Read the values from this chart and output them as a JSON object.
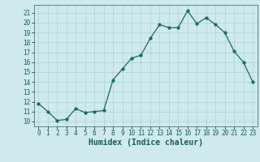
{
  "xlabel": "Humidex (Indice chaleur)",
  "x": [
    0,
    1,
    2,
    3,
    4,
    5,
    6,
    7,
    8,
    9,
    10,
    11,
    12,
    13,
    14,
    15,
    16,
    17,
    18,
    19,
    20,
    21,
    22,
    23
  ],
  "y": [
    11.8,
    11.0,
    10.1,
    10.2,
    11.3,
    10.9,
    11.0,
    11.1,
    14.2,
    15.3,
    16.4,
    16.7,
    18.4,
    19.8,
    19.5,
    19.5,
    21.2,
    19.9,
    20.5,
    19.8,
    19.0,
    17.1,
    16.0,
    14.0
  ],
  "line_color": "#1a6b5a",
  "marker_size": 2.5,
  "bg_color": "#ceeaea",
  "grid_color": "#aad4d4",
  "ylim": [
    9.5,
    21.8
  ],
  "xlim": [
    -0.5,
    23.5
  ],
  "yticks": [
    10,
    11,
    12,
    13,
    14,
    15,
    16,
    17,
    18,
    19,
    20,
    21
  ],
  "xticks": [
    0,
    1,
    2,
    3,
    4,
    5,
    6,
    7,
    8,
    9,
    10,
    11,
    12,
    13,
    14,
    15,
    16,
    17,
    18,
    19,
    20,
    21,
    22,
    23
  ],
  "tick_fontsize": 5.5,
  "label_fontsize": 7
}
